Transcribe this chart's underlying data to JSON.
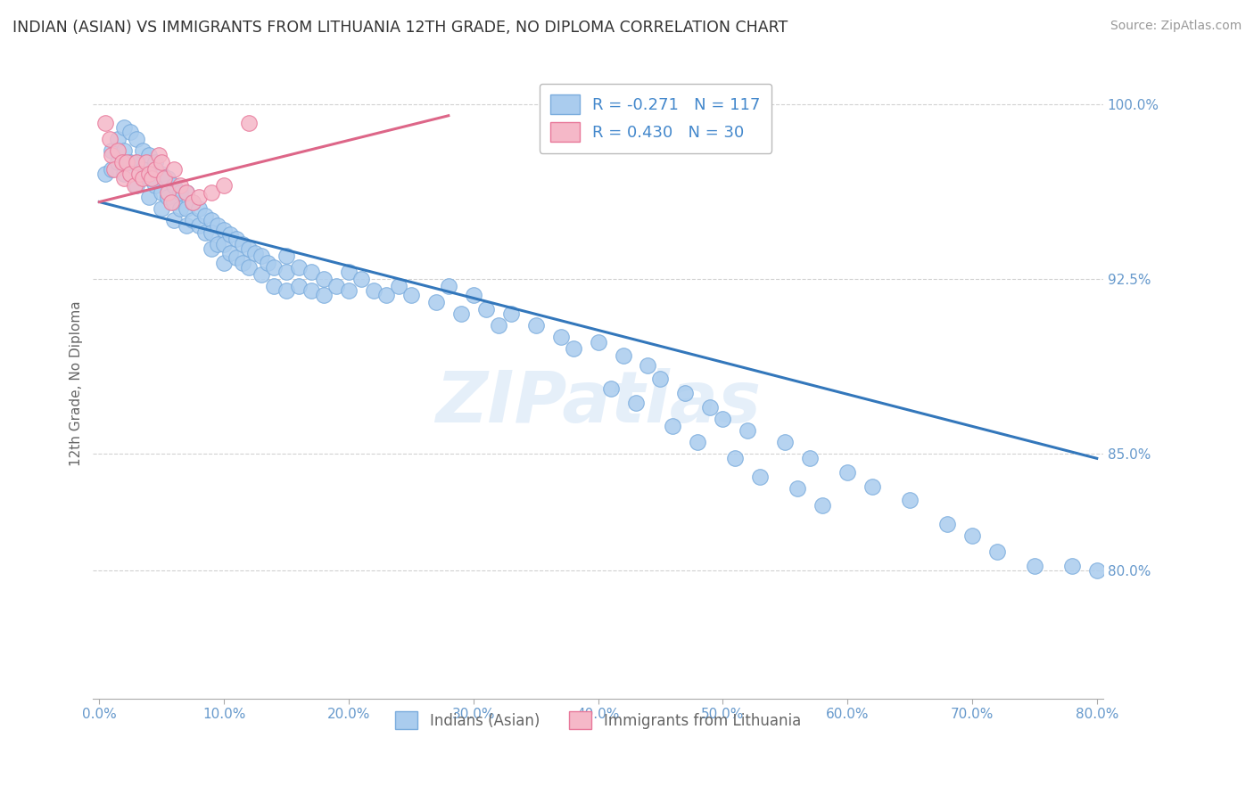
{
  "title": "INDIAN (ASIAN) VS IMMIGRANTS FROM LITHUANIA 12TH GRADE, NO DIPLOMA CORRELATION CHART",
  "source": "Source: ZipAtlas.com",
  "ylabel_val": "12th Grade, No Diploma",
  "watermark": "ZIPatlas",
  "legend": {
    "blue_r": "R = -0.271",
    "blue_n": "N = 117",
    "pink_r": "R = 0.430",
    "pink_n": "N = 30"
  },
  "xlim": [
    -0.005,
    0.805
  ],
  "ylim": [
    0.745,
    1.015
  ],
  "xticks": [
    0.0,
    0.1,
    0.2,
    0.3,
    0.4,
    0.5,
    0.6,
    0.7,
    0.8
  ],
  "yticks": [
    0.8,
    0.85,
    0.925,
    1.0
  ],
  "ytick_labels": [
    "80.0%",
    "85.0%",
    "92.5%",
    "100.0%"
  ],
  "xtick_labels": [
    "0.0%",
    "10.0%",
    "20.0%",
    "30.0%",
    "40.0%",
    "50.0%",
    "60.0%",
    "70.0%",
    "80.0%"
  ],
  "blue_color": "#aaccee",
  "blue_edge": "#7aacdd",
  "pink_color": "#f5b8c8",
  "pink_edge": "#e8789a",
  "trend_blue": "#3377bb",
  "trend_pink": "#dd6688",
  "blue_scatter_x": [
    0.005,
    0.01,
    0.01,
    0.015,
    0.015,
    0.02,
    0.02,
    0.02,
    0.025,
    0.025,
    0.03,
    0.03,
    0.03,
    0.035,
    0.035,
    0.04,
    0.04,
    0.04,
    0.045,
    0.045,
    0.05,
    0.05,
    0.05,
    0.055,
    0.055,
    0.06,
    0.06,
    0.06,
    0.065,
    0.065,
    0.07,
    0.07,
    0.07,
    0.075,
    0.075,
    0.08,
    0.08,
    0.085,
    0.085,
    0.09,
    0.09,
    0.09,
    0.095,
    0.095,
    0.1,
    0.1,
    0.1,
    0.105,
    0.105,
    0.11,
    0.11,
    0.115,
    0.115,
    0.12,
    0.12,
    0.125,
    0.13,
    0.13,
    0.135,
    0.14,
    0.14,
    0.15,
    0.15,
    0.15,
    0.16,
    0.16,
    0.17,
    0.17,
    0.18,
    0.18,
    0.19,
    0.2,
    0.2,
    0.21,
    0.22,
    0.23,
    0.24,
    0.25,
    0.27,
    0.28,
    0.29,
    0.3,
    0.31,
    0.32,
    0.33,
    0.35,
    0.37,
    0.38,
    0.4,
    0.42,
    0.44,
    0.45,
    0.47,
    0.49,
    0.5,
    0.52,
    0.55,
    0.57,
    0.6,
    0.62,
    0.65,
    0.68,
    0.7,
    0.72,
    0.75,
    0.78,
    0.8,
    0.41,
    0.43,
    0.46,
    0.48,
    0.51,
    0.53,
    0.56,
    0.58
  ],
  "blue_scatter_y": [
    0.97,
    0.98,
    0.972,
    0.985,
    0.975,
    0.99,
    0.98,
    0.97,
    0.988,
    0.975,
    0.985,
    0.975,
    0.965,
    0.98,
    0.972,
    0.978,
    0.968,
    0.96,
    0.975,
    0.965,
    0.97,
    0.962,
    0.955,
    0.968,
    0.96,
    0.965,
    0.958,
    0.95,
    0.962,
    0.955,
    0.962,
    0.955,
    0.948,
    0.958,
    0.95,
    0.955,
    0.948,
    0.952,
    0.945,
    0.95,
    0.945,
    0.938,
    0.948,
    0.94,
    0.946,
    0.94,
    0.932,
    0.944,
    0.936,
    0.942,
    0.934,
    0.94,
    0.932,
    0.938,
    0.93,
    0.936,
    0.935,
    0.927,
    0.932,
    0.93,
    0.922,
    0.935,
    0.928,
    0.92,
    0.93,
    0.922,
    0.928,
    0.92,
    0.925,
    0.918,
    0.922,
    0.928,
    0.92,
    0.925,
    0.92,
    0.918,
    0.922,
    0.918,
    0.915,
    0.922,
    0.91,
    0.918,
    0.912,
    0.905,
    0.91,
    0.905,
    0.9,
    0.895,
    0.898,
    0.892,
    0.888,
    0.882,
    0.876,
    0.87,
    0.865,
    0.86,
    0.855,
    0.848,
    0.842,
    0.836,
    0.83,
    0.82,
    0.815,
    0.808,
    0.802,
    0.802,
    0.8,
    0.878,
    0.872,
    0.862,
    0.855,
    0.848,
    0.84,
    0.835,
    0.828
  ],
  "pink_scatter_x": [
    0.005,
    0.008,
    0.01,
    0.012,
    0.015,
    0.018,
    0.02,
    0.022,
    0.025,
    0.028,
    0.03,
    0.032,
    0.035,
    0.038,
    0.04,
    0.042,
    0.045,
    0.048,
    0.05,
    0.052,
    0.055,
    0.058,
    0.06,
    0.065,
    0.07,
    0.075,
    0.08,
    0.09,
    0.1,
    0.12
  ],
  "pink_scatter_y": [
    0.992,
    0.985,
    0.978,
    0.972,
    0.98,
    0.975,
    0.968,
    0.975,
    0.97,
    0.965,
    0.975,
    0.97,
    0.968,
    0.975,
    0.97,
    0.968,
    0.972,
    0.978,
    0.975,
    0.968,
    0.962,
    0.958,
    0.972,
    0.965,
    0.962,
    0.958,
    0.96,
    0.962,
    0.965,
    0.992
  ],
  "blue_trend_x": [
    0.0,
    0.8
  ],
  "blue_trend_y": [
    0.958,
    0.848
  ],
  "pink_trend_x": [
    0.0,
    0.28
  ],
  "pink_trend_y": [
    0.958,
    0.995
  ],
  "grid_color": "#cccccc",
  "bg_color": "#ffffff",
  "text_color_blue": "#4488cc",
  "text_color_axis": "#6699cc"
}
